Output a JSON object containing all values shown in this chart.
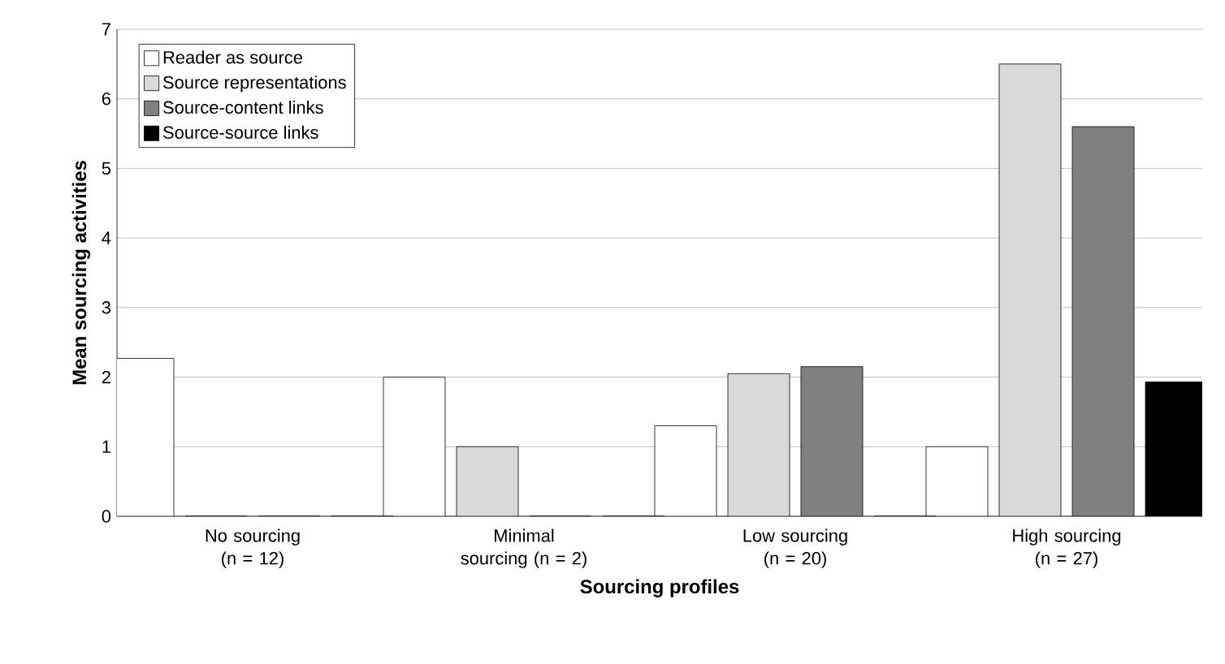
{
  "chart_data": {
    "type": "bar",
    "xlabel": "Sourcing profiles",
    "ylabel": "Mean sourcing activities",
    "categories": [
      "No sourcing (n = 12)",
      "Minimal sourcing (n = 2)",
      "Low sourcing (n = 20)",
      "High sourcing (n = 27)"
    ],
    "series": [
      {
        "name": "Reader as source",
        "color": "#ffffff",
        "values": [
          2.27,
          2.0,
          1.3,
          1.0
        ]
      },
      {
        "name": "Source representations",
        "color": "#d9d9d9",
        "values": [
          0,
          1.0,
          2.05,
          6.5
        ]
      },
      {
        "name": "Source-content links",
        "color": "#808080",
        "values": [
          0,
          0,
          2.15,
          5.6
        ]
      },
      {
        "name": "Source-source links",
        "color": "#000000",
        "values": [
          0,
          0,
          0,
          1.93
        ]
      }
    ],
    "ylim": [
      0,
      7
    ],
    "yticks": [
      0,
      1,
      2,
      3,
      4,
      5,
      6,
      7
    ],
    "grid": "y",
    "legend": "top left"
  }
}
